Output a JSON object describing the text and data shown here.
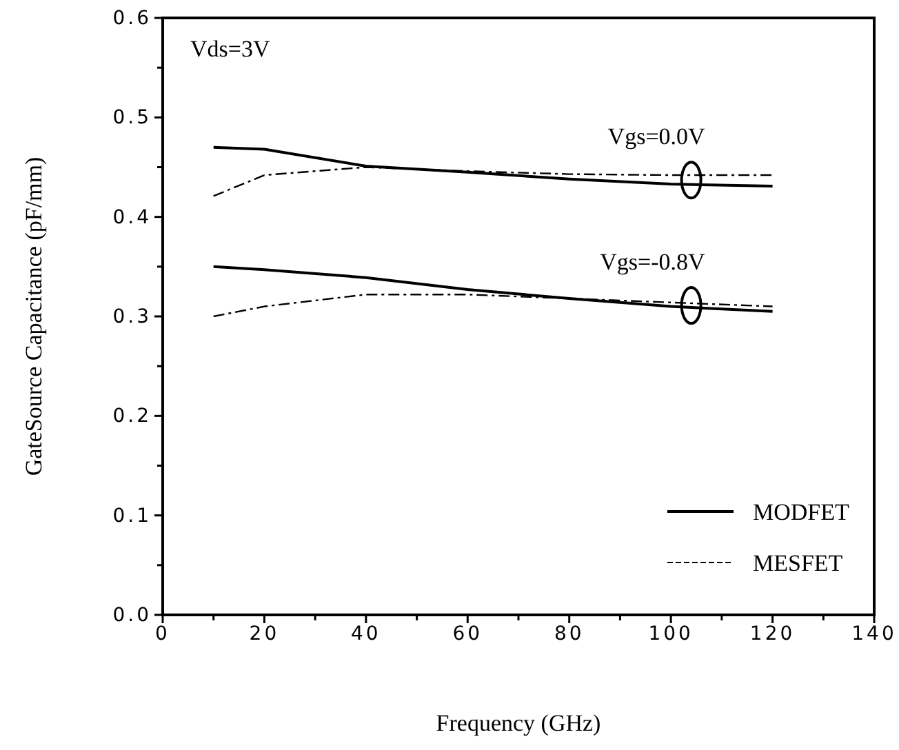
{
  "chart_data": {
    "type": "line",
    "xlabel": "Frequency (GHz)",
    "ylabel": "GateSource Capacitance (pF/mm)",
    "xlim": [
      0,
      140
    ],
    "ylim": [
      0,
      0.6
    ],
    "xticks": [
      0,
      {
        "value": 10,
        "label": null
      },
      20,
      {
        "value": 30,
        "label": null
      },
      40,
      {
        "value": 50,
        "label": null
      },
      60,
      {
        "value": 70,
        "label": null
      },
      80,
      {
        "value": 90,
        "label": null
      },
      100,
      {
        "value": 110,
        "label": null
      },
      120,
      {
        "value": 130,
        "label": null
      },
      140
    ],
    "yticks": [
      {
        "value": 0,
        "label": "0.0"
      },
      {
        "value": 0.05,
        "label": null
      },
      0.1,
      {
        "value": 0.15,
        "label": null
      },
      0.2,
      {
        "value": 0.25,
        "label": null
      },
      0.3,
      {
        "value": 0.35,
        "label": null
      },
      0.4,
      {
        "value": 0.45,
        "label": null
      },
      0.5,
      {
        "value": 0.55,
        "label": null
      },
      0.6
    ],
    "x": [
      10,
      20,
      40,
      60,
      80,
      100,
      120
    ],
    "series": [
      {
        "name": "MODFET",
        "color": "#000000",
        "line_style": "solid",
        "values": [
          0.47,
          0.468,
          0.451,
          0.445,
          0.438,
          0.433,
          0.431
        ]
      },
      {
        "name": "MESFET",
        "color": "#000000",
        "line_style": "dashed",
        "values": [
          0.421,
          0.442,
          0.45,
          0.446,
          0.443,
          0.442,
          0.442
        ]
      },
      {
        "color": "#000000",
        "line_style": "solid",
        "values": [
          0.35,
          0.347,
          0.339,
          0.327,
          0.318,
          0.31,
          0.305
        ]
      },
      {
        "color": "#000000",
        "line_style": "dashed",
        "values": [
          0.3,
          0.31,
          0.322,
          0.322,
          0.318,
          0.314,
          0.31
        ]
      }
    ],
    "annotations": [
      "Vds=3V",
      {
        "text": "Vgs=0.0V",
        "x": 104,
        "y": 0.437
      },
      {
        "text": "Vgs=-0.8V",
        "x": 104,
        "y": 0.311
      }
    ],
    "legend": "bottom right",
    "grid": false,
    "marker": "none"
  }
}
